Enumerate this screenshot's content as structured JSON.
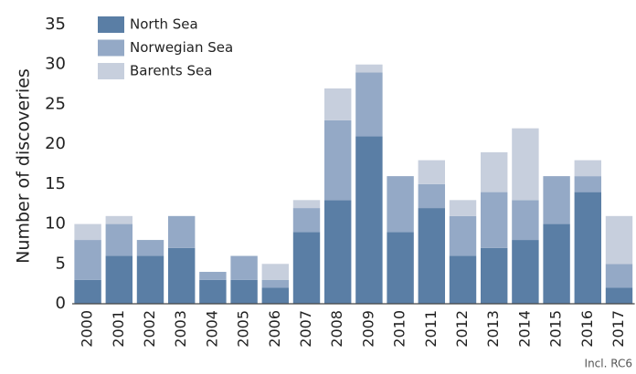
{
  "chart_data": {
    "type": "stacked_bar",
    "y_label": "Number of discoveries",
    "note": "Incl. RC6",
    "categories": [
      "2000",
      "2001",
      "2002",
      "2003",
      "2004",
      "2005",
      "2006",
      "2007",
      "2008",
      "2009",
      "2010",
      "2011",
      "2012",
      "2013",
      "2014",
      "2015",
      "2016",
      "2017"
    ],
    "series": [
      {
        "name": "North Sea",
        "color": "#5a7ea5",
        "values": [
          3,
          6,
          6,
          7,
          3,
          3,
          2,
          9,
          13,
          21,
          9,
          12,
          6,
          7,
          8,
          10,
          14,
          2
        ]
      },
      {
        "name": "Norwegian Sea",
        "color": "#94a9c6",
        "values": [
          5,
          4,
          2,
          4,
          1,
          3,
          1,
          3,
          10,
          8,
          7,
          3,
          5,
          7,
          5,
          6,
          2,
          3
        ]
      },
      {
        "name": "Barents Sea",
        "color": "#c7cfdd",
        "values": [
          2,
          1,
          0,
          0,
          0,
          0,
          2,
          1,
          4,
          1,
          0,
          3,
          2,
          5,
          9,
          0,
          2,
          6
        ]
      }
    ],
    "ylim": [
      0,
      35
    ],
    "yticks": [
      0,
      5,
      10,
      15,
      20,
      25,
      30,
      35
    ],
    "grid": false,
    "legend": "top-left"
  }
}
